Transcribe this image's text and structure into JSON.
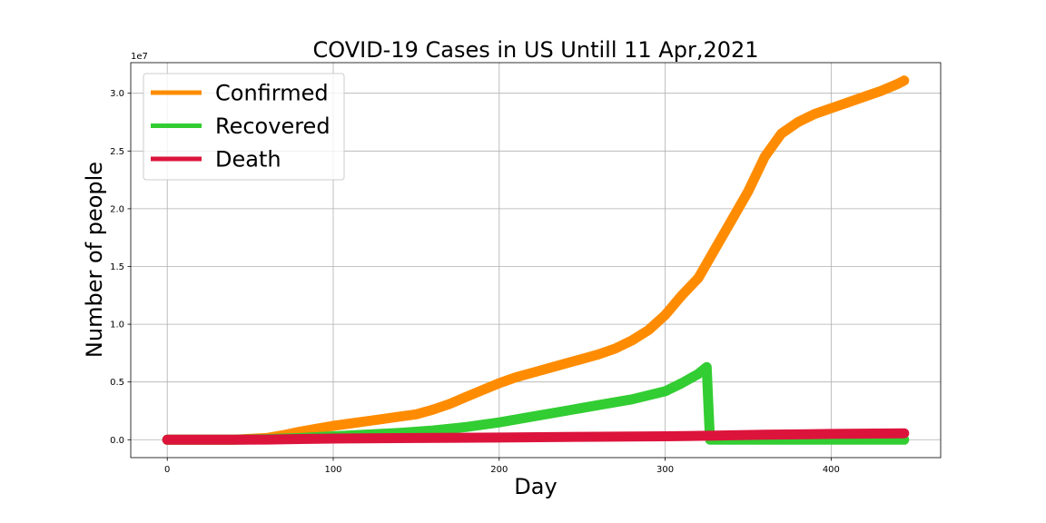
{
  "chart_data": {
    "type": "line",
    "title": "COVID-19 Cases in US Untill 11 Apr,2021",
    "xlabel": "Day",
    "ylabel": "Number of people",
    "y_offset_label": "1e7",
    "xlim": [
      -22,
      466
    ],
    "ylim": [
      -1550000,
      32650000
    ],
    "grid": true,
    "legend_position": "top-left",
    "x_ticks": [
      0,
      100,
      200,
      300,
      400
    ],
    "x_tick_labels": [
      "0",
      "100",
      "200",
      "300",
      "400"
    ],
    "y_ticks": [
      0,
      5000000,
      10000000,
      15000000,
      20000000,
      25000000,
      30000000
    ],
    "y_tick_labels": [
      "0.0",
      "0.5",
      "1.0",
      "1.5",
      "2.0",
      "2.5",
      "3.0"
    ],
    "series": [
      {
        "name": "Confirmed",
        "color": "#ff8c00",
        "x": [
          0,
          40,
          60,
          70,
          80,
          90,
          100,
          110,
          120,
          130,
          140,
          150,
          160,
          170,
          180,
          190,
          200,
          210,
          220,
          230,
          240,
          250,
          260,
          270,
          280,
          290,
          300,
          310,
          320,
          330,
          340,
          350,
          360,
          370,
          380,
          390,
          400,
          410,
          420,
          430,
          440,
          444
        ],
        "y": [
          0,
          5000,
          150000,
          400000,
          700000,
          950000,
          1200000,
          1400000,
          1600000,
          1800000,
          2000000,
          2200000,
          2600000,
          3100000,
          3700000,
          4300000,
          4900000,
          5400000,
          5800000,
          6200000,
          6600000,
          7000000,
          7400000,
          7900000,
          8600000,
          9500000,
          10800000,
          12500000,
          14000000,
          16500000,
          19000000,
          21500000,
          24500000,
          26500000,
          27500000,
          28200000,
          28700000,
          29200000,
          29700000,
          30200000,
          30800000,
          31100000
        ]
      },
      {
        "name": "Recovered",
        "color": "#32cd32",
        "x": [
          0,
          40,
          60,
          80,
          100,
          120,
          140,
          160,
          180,
          200,
          220,
          240,
          260,
          280,
          300,
          310,
          320,
          325,
          327,
          330,
          360,
          400,
          444
        ],
        "y": [
          0,
          0,
          50000,
          150000,
          300000,
          450000,
          600000,
          800000,
          1100000,
          1500000,
          2000000,
          2500000,
          3000000,
          3500000,
          4200000,
          4900000,
          5700000,
          6300000,
          0,
          0,
          0,
          0,
          0
        ]
      },
      {
        "name": "Death",
        "color": "#dc143c",
        "x": [
          0,
          40,
          60,
          80,
          100,
          150,
          200,
          250,
          300,
          330,
          360,
          400,
          444
        ],
        "y": [
          0,
          2000,
          15000,
          60000,
          100000,
          150000,
          190000,
          250000,
          300000,
          350000,
          430000,
          500000,
          560000
        ]
      }
    ]
  }
}
